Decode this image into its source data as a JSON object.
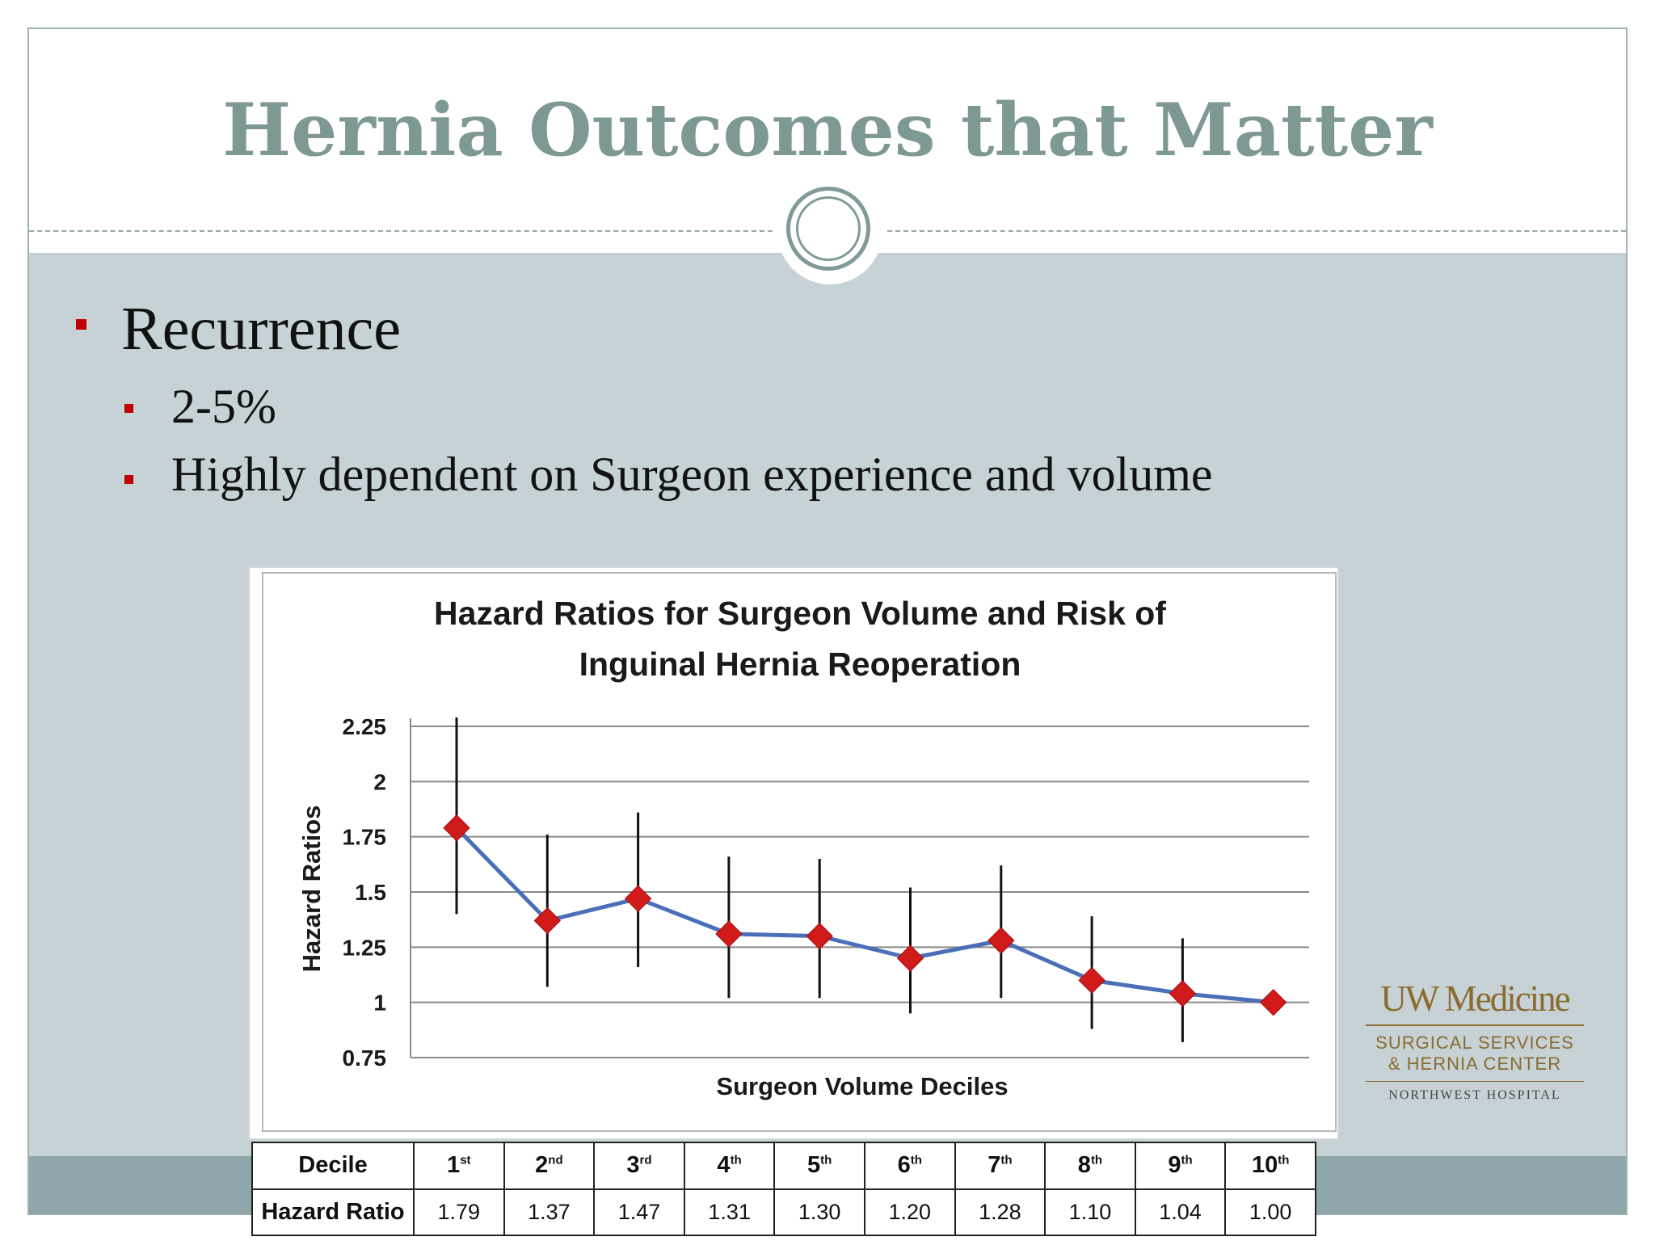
{
  "slide": {
    "title": "Hernia Outcomes that Matter",
    "bullets": [
      {
        "text": "Recurrence",
        "level": 1
      },
      {
        "text": "2-5%",
        "level": 2
      },
      {
        "text": "Highly dependent on Surgeon experience and volume",
        "level": 2
      }
    ]
  },
  "chart_data": {
    "type": "line",
    "title_line1": "Hazard Ratios for Surgeon Volume and Risk of",
    "title_line2": "Inguinal Hernia Reoperation",
    "title": "Hazard Ratios for Surgeon Volume and Risk of Inguinal Hernia Reoperation",
    "xlabel": "Surgeon Volume Deciles",
    "ylabel": "Hazard Ratios",
    "ylim": [
      0.75,
      2.25
    ],
    "yticks": [
      "2.25",
      "2",
      "1.75",
      "1.5",
      "1.25",
      "1",
      "0.75"
    ],
    "grid": true,
    "marker": "diamond",
    "colors": {
      "line": "#4a6fb8",
      "marker": "#d11a1a",
      "error_bar": "#111111"
    },
    "categories": [
      "1st",
      "2nd",
      "3rd",
      "4th",
      "5th",
      "6th",
      "7th",
      "8th",
      "9th",
      "10th"
    ],
    "series": [
      {
        "values": [
          1.79,
          1.37,
          1.47,
          1.31,
          1.3,
          1.2,
          1.28,
          1.1,
          1.04,
          1.0
        ],
        "ci_low": [
          1.4,
          1.07,
          1.16,
          1.02,
          1.02,
          0.95,
          1.02,
          0.88,
          0.82,
          1.0
        ],
        "ci_high": [
          2.29,
          1.76,
          1.86,
          1.66,
          1.65,
          1.52,
          1.62,
          1.39,
          1.29,
          1.0
        ]
      }
    ]
  },
  "table": {
    "row1_label": "Decile",
    "row2_label": "Hazard Ratio",
    "deciles": [
      {
        "num": "1",
        "suffix": "st",
        "hr": "1.79"
      },
      {
        "num": "2",
        "suffix": "nd",
        "hr": "1.37"
      },
      {
        "num": "3",
        "suffix": "rd",
        "hr": "1.47"
      },
      {
        "num": "4",
        "suffix": "th",
        "hr": "1.31"
      },
      {
        "num": "5",
        "suffix": "th",
        "hr": "1.30"
      },
      {
        "num": "6",
        "suffix": "th",
        "hr": "1.20"
      },
      {
        "num": "7",
        "suffix": "th",
        "hr": "1.28"
      },
      {
        "num": "8",
        "suffix": "th",
        "hr": "1.10"
      },
      {
        "num": "9",
        "suffix": "th",
        "hr": "1.04"
      },
      {
        "num": "10",
        "suffix": "th",
        "hr": "1.00"
      }
    ]
  },
  "logo": {
    "name": "UW Medicine",
    "sub1": "SURGICAL SERVICES",
    "sub2": "& HERNIA CENTER",
    "site": "NORTHWEST HOSPITAL"
  }
}
